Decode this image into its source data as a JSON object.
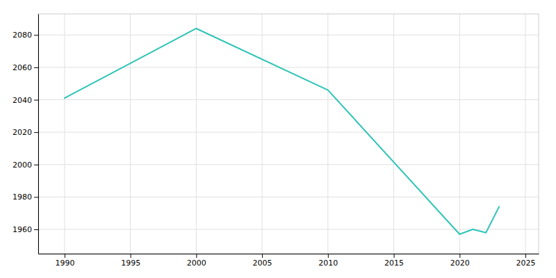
{
  "chart_data": {
    "type": "line",
    "x": [
      1990,
      2000,
      2010,
      2020,
      2021,
      2022,
      2023
    ],
    "values": [
      2041,
      2084,
      2046,
      1957,
      1960,
      1958,
      1974
    ],
    "color": "#2EC4B6",
    "xlim": [
      1988,
      2026
    ],
    "ylim": [
      1945,
      2093
    ],
    "xticks": [
      1990,
      1995,
      2000,
      2005,
      2010,
      2015,
      2020,
      2025
    ],
    "yticks": [
      1960,
      1980,
      2000,
      2020,
      2040,
      2060,
      2080
    ],
    "grid": true
  }
}
